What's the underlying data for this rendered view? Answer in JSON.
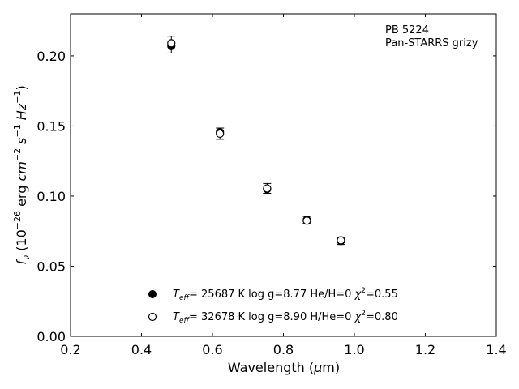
{
  "chart_data": {
    "type": "scatter",
    "title": "",
    "annotation": [
      "PB 5224",
      "Pan-STARRS grizy"
    ],
    "xlabel": {
      "main": "Wavelength (",
      "greek": "μ",
      "unit": "m)"
    },
    "ylabel": {
      "f": "f",
      "sub": "ν",
      "pre": " (10",
      "exp1": "−26",
      "mid": " erg ",
      "cm": "cm",
      "exp2": "−2",
      "s": " s",
      "exp3": "−1",
      "hz": " Hz",
      "exp4": "−1",
      "end": ")"
    },
    "xlim": [
      0.2,
      1.4
    ],
    "ylim": [
      0.0,
      0.23
    ],
    "x_ticks": [
      0.2,
      0.4,
      0.6,
      0.8,
      1.0,
      1.2,
      1.4
    ],
    "x_tick_labels": [
      "0.2",
      "0.4",
      "0.6",
      "0.8",
      "1.0",
      "1.2",
      "1.4"
    ],
    "y_ticks": [
      0.0,
      0.05,
      0.1,
      0.15,
      0.2
    ],
    "y_tick_labels": [
      "0.00",
      "0.05",
      "0.10",
      "0.15",
      "0.20"
    ],
    "observed": {
      "x": [
        0.484,
        0.621,
        0.754,
        0.866,
        0.962
      ],
      "y": [
        0.208,
        0.1445,
        0.1055,
        0.083,
        0.068
      ],
      "yerr": [
        0.006,
        0.004,
        0.0035,
        0.0025,
        0.0025
      ]
    },
    "series": [
      {
        "marker": "filled",
        "label_parts": [
          "T",
          "eff",
          "= 25687 K  log g=8.77  He/H=0  ",
          "χ",
          "2",
          "=0.55"
        ],
        "x": [
          0.484,
          0.621,
          0.754,
          0.866,
          0.962
        ],
        "y": [
          0.207,
          0.1455,
          0.105,
          0.083,
          0.068
        ]
      },
      {
        "marker": "open",
        "label_parts": [
          "T",
          "eff",
          "= 32678 K  log g=8.90  H/He=0  ",
          "χ",
          "2",
          "=0.80"
        ],
        "x": [
          0.484,
          0.621,
          0.754,
          0.866,
          0.962
        ],
        "y": [
          0.209,
          0.1445,
          0.1055,
          0.0825,
          0.0685
        ]
      }
    ],
    "legend_position": "lower-center",
    "grid": false
  }
}
